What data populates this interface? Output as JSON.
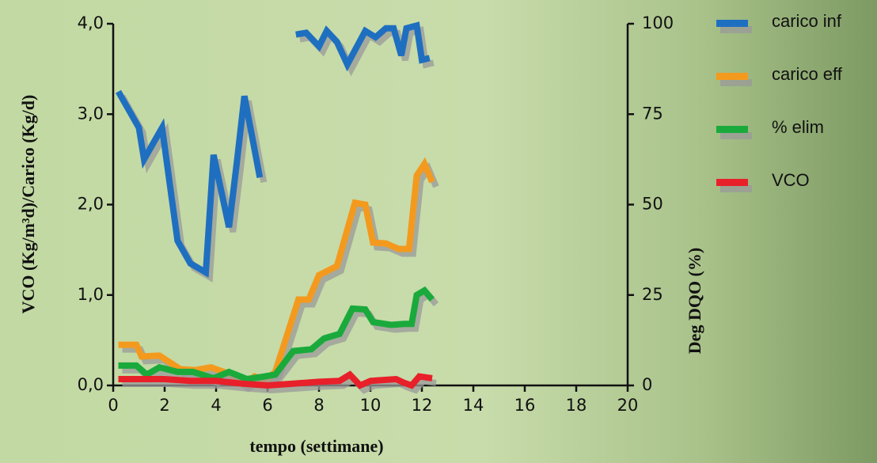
{
  "chart_data": {
    "type": "line",
    "ylabel": "VCO (Kg/m³d)/Carico (Kg/d)",
    "y2label": "Deg DQO (%)",
    "xlabel": "tempo (settimane)",
    "xlim": [
      0,
      20
    ],
    "xticks": [
      0,
      2,
      4,
      6,
      8,
      10,
      12,
      14,
      16,
      18,
      20
    ],
    "ylim": [
      0,
      4
    ],
    "yticks": [
      {
        "value": 0,
        "label": "0,0"
      },
      {
        "value": 1,
        "label": "1,0"
      },
      {
        "value": 2,
        "label": "2,0"
      },
      {
        "value": 3,
        "label": "3,0"
      },
      {
        "value": 4,
        "label": "4,0"
      }
    ],
    "y2lim": [
      0,
      100
    ],
    "y2ticks": [
      0,
      25,
      50,
      75,
      100
    ],
    "series": [
      {
        "name": "carico inf",
        "color": "#1f6fc0",
        "x": [
          0.2,
          1,
          1.2,
          1.6,
          1.9,
          2.5,
          3,
          3.6,
          3.9,
          4.5,
          4.8,
          5.1,
          5.7,
          6.4,
          7.1,
          7.5,
          8,
          8.3,
          8.7,
          9.1,
          9.8,
          10.2,
          10.6,
          10.9,
          11.2,
          11.4,
          11.8,
          12,
          12.3
        ],
        "values": [
          3.25,
          2.85,
          2.5,
          2.7,
          2.85,
          1.6,
          1.35,
          1.25,
          2.55,
          1.75,
          2.45,
          3.2,
          2.3,
          null,
          3.88,
          3.9,
          3.75,
          3.92,
          3.8,
          3.55,
          3.92,
          3.85,
          3.95,
          3.95,
          3.65,
          3.95,
          3.98,
          3.6,
          3.62
        ]
      },
      {
        "name": "carico eff",
        "color": "#f39a1e",
        "x": [
          0.2,
          0.9,
          1.1,
          1.8,
          2.6,
          3.2,
          3.8,
          4.6,
          5.1,
          5.5,
          5.9,
          6.3,
          7.2,
          7.6,
          8,
          8.7,
          9.4,
          9.8,
          10.1,
          10.6,
          11.1,
          11.5,
          11.8,
          12.1,
          12.4
        ],
        "values": [
          0.45,
          0.45,
          0.32,
          0.33,
          0.18,
          0.17,
          0.2,
          0.12,
          0.02,
          0.1,
          0.05,
          0.15,
          0.95,
          0.95,
          1.22,
          1.32,
          2.02,
          2.0,
          1.58,
          1.57,
          1.51,
          1.51,
          2.32,
          2.45,
          2.25
        ]
      },
      {
        "name": "% elim",
        "color": "#1aaa3c",
        "axis": "y2",
        "x": [
          0.2,
          0.9,
          1.3,
          1.8,
          2.5,
          3.1,
          3.9,
          4.5,
          5.2,
          5.9,
          6.3,
          7,
          7.7,
          8.2,
          8.8,
          9.3,
          9.8,
          10.1,
          10.8,
          11.3,
          11.6,
          11.8,
          12.1,
          12.4
        ],
        "values": [
          5.5,
          5.5,
          3,
          5,
          3.75,
          3.75,
          2,
          3.75,
          1.75,
          2.5,
          3,
          9.5,
          10,
          13,
          14.25,
          21.25,
          21,
          17.5,
          16.75,
          17,
          17,
          25,
          26.25,
          23.75
        ]
      },
      {
        "name": "VCO",
        "color": "#e8202a",
        "x": [
          0.2,
          1,
          2,
          3,
          4,
          5,
          6,
          7,
          8,
          8.8,
          9.2,
          9.6,
          10,
          10.5,
          11,
          11.3,
          11.6,
          11.9,
          12.4
        ],
        "values": [
          0.07,
          0.07,
          0.07,
          0.05,
          0.05,
          0.02,
          0.0,
          0.02,
          0.04,
          0.05,
          0.12,
          0.0,
          0.05,
          0.06,
          0.07,
          0.03,
          0.0,
          0.1,
          0.08
        ]
      }
    ]
  }
}
